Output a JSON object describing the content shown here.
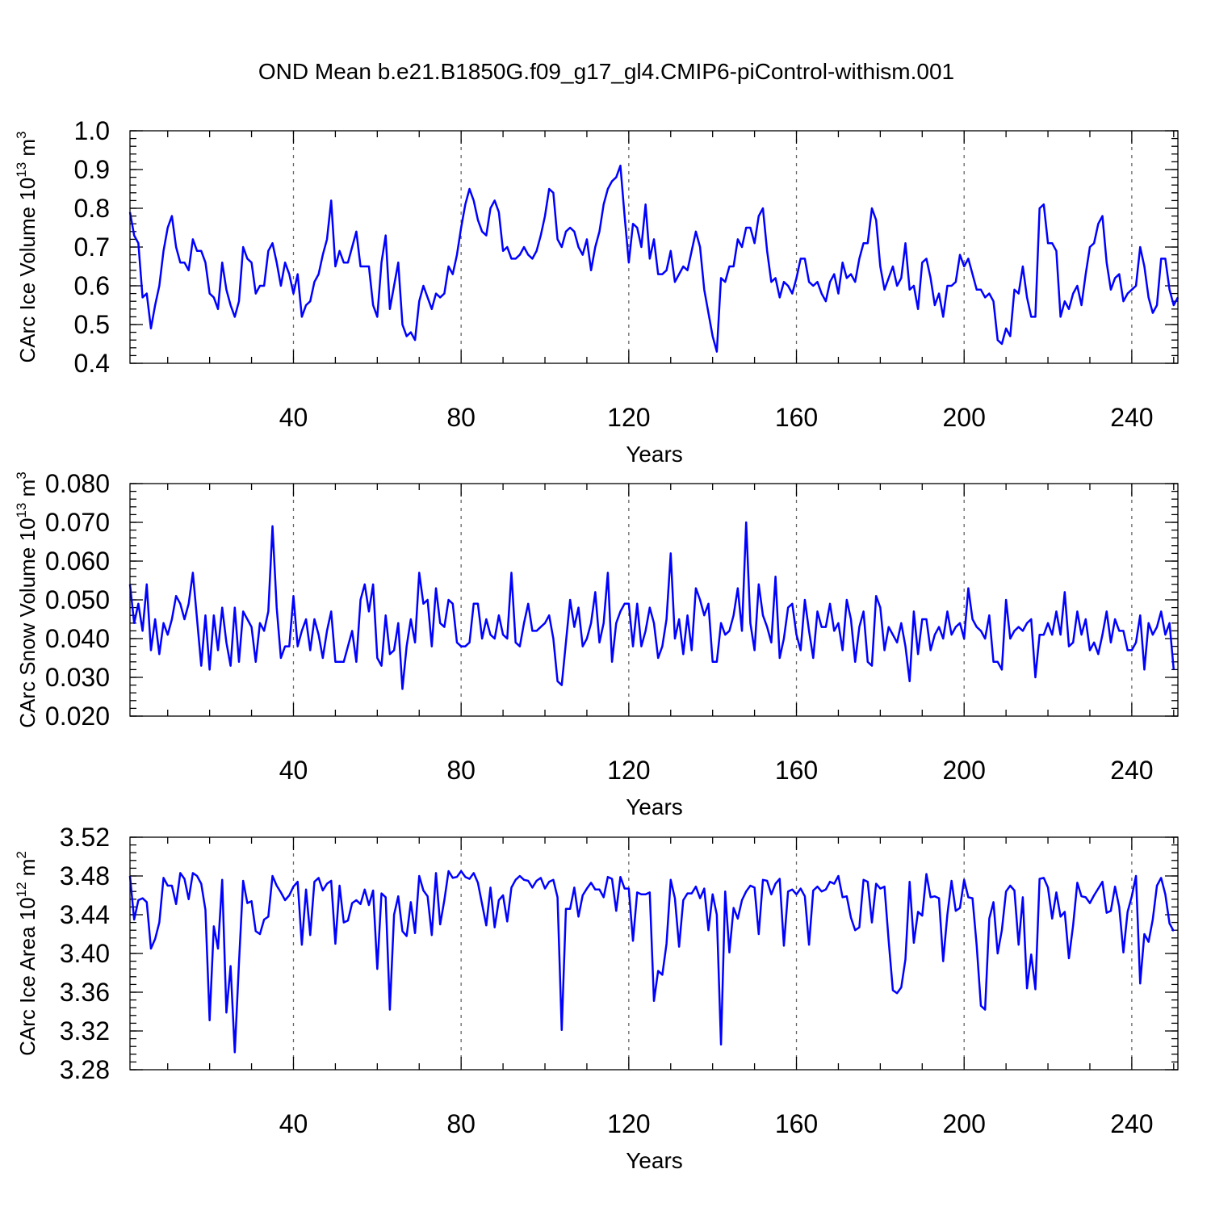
{
  "title": "OND Mean b.e21.B1850G.f09_g17_gl4.CMIP6-piControl-withism.001",
  "chart_data": [
    {
      "type": "line",
      "name": "ice-volume",
      "ylabel_text": "CArc Ice Volume 10",
      "ylabel_exp": "13",
      "ylabel_unit": " m",
      "ylabel_unit_exp": "3",
      "xlabel": "Years",
      "xlim": [
        1,
        251
      ],
      "ylim": [
        0.4,
        1.0
      ],
      "xticks": [
        40,
        80,
        120,
        160,
        200,
        240
      ],
      "xtick_labels": [
        "40",
        "80",
        "120",
        "160",
        "200",
        "240"
      ],
      "yticks": [
        0.4,
        0.5,
        0.6,
        0.7,
        0.8,
        0.9,
        1.0
      ],
      "ytick_labels": [
        "0.4",
        "0.5",
        "0.6",
        "0.7",
        "0.8",
        "0.9",
        "1.0"
      ],
      "grid_x": [
        40,
        80,
        120,
        160,
        200,
        240
      ],
      "series_color": "#0000ff",
      "values": [
        0.79,
        0.73,
        0.71,
        0.57,
        0.58,
        0.49,
        0.55,
        0.6,
        0.69,
        0.75,
        0.78,
        0.7,
        0.66,
        0.66,
        0.64,
        0.72,
        0.69,
        0.69,
        0.66,
        0.58,
        0.57,
        0.54,
        0.66,
        0.59,
        0.55,
        0.52,
        0.56,
        0.7,
        0.67,
        0.66,
        0.58,
        0.6,
        0.6,
        0.69,
        0.71,
        0.66,
        0.6,
        0.66,
        0.63,
        0.58,
        0.63,
        0.52,
        0.55,
        0.56,
        0.61,
        0.63,
        0.68,
        0.72,
        0.82,
        0.65,
        0.69,
        0.66,
        0.66,
        0.7,
        0.74,
        0.65,
        0.65,
        0.65,
        0.55,
        0.52,
        0.66,
        0.73,
        0.54,
        0.6,
        0.66,
        0.5,
        0.47,
        0.48,
        0.46,
        0.56,
        0.6,
        0.57,
        0.54,
        0.58,
        0.57,
        0.58,
        0.65,
        0.63,
        0.68,
        0.75,
        0.81,
        0.85,
        0.82,
        0.77,
        0.74,
        0.73,
        0.8,
        0.82,
        0.79,
        0.69,
        0.7,
        0.67,
        0.67,
        0.68,
        0.7,
        0.68,
        0.67,
        0.69,
        0.73,
        0.78,
        0.85,
        0.84,
        0.72,
        0.7,
        0.74,
        0.75,
        0.74,
        0.7,
        0.68,
        0.72,
        0.64,
        0.7,
        0.74,
        0.81,
        0.85,
        0.87,
        0.88,
        0.91,
        0.78,
        0.66,
        0.76,
        0.75,
        0.7,
        0.81,
        0.67,
        0.72,
        0.63,
        0.63,
        0.64,
        0.69,
        0.61,
        0.63,
        0.65,
        0.64,
        0.69,
        0.74,
        0.7,
        0.59,
        0.53,
        0.47,
        0.43,
        0.62,
        0.61,
        0.65,
        0.65,
        0.72,
        0.7,
        0.75,
        0.75,
        0.71,
        0.78,
        0.8,
        0.69,
        0.61,
        0.62,
        0.57,
        0.61,
        0.6,
        0.58,
        0.62,
        0.67,
        0.67,
        0.61,
        0.6,
        0.61,
        0.58,
        0.56,
        0.61,
        0.63,
        0.58,
        0.66,
        0.62,
        0.63,
        0.61,
        0.67,
        0.71,
        0.71,
        0.8,
        0.77,
        0.65,
        0.59,
        0.62,
        0.65,
        0.6,
        0.62,
        0.71,
        0.59,
        0.6,
        0.54,
        0.66,
        0.67,
        0.62,
        0.55,
        0.58,
        0.52,
        0.6,
        0.6,
        0.61,
        0.68,
        0.65,
        0.67,
        0.63,
        0.59,
        0.59,
        0.57,
        0.58,
        0.56,
        0.46,
        0.45,
        0.49,
        0.47,
        0.59,
        0.58,
        0.65,
        0.57,
        0.52,
        0.52,
        0.8,
        0.81,
        0.71,
        0.71,
        0.69,
        0.52,
        0.56,
        0.54,
        0.58,
        0.6,
        0.55,
        0.63,
        0.7,
        0.71,
        0.76,
        0.78,
        0.66,
        0.59,
        0.62,
        0.63,
        0.56,
        0.58,
        0.59,
        0.6,
        0.7,
        0.65,
        0.57,
        0.53,
        0.55,
        0.67,
        0.67,
        0.59,
        0.55,
        0.57
      ]
    },
    {
      "type": "line",
      "name": "snow-volume",
      "ylabel_text": "CArc Snow Volume 10",
      "ylabel_exp": "13",
      "ylabel_unit": " m",
      "ylabel_unit_exp": "3",
      "xlabel": "Years",
      "xlim": [
        1,
        251
      ],
      "ylim": [
        0.02,
        0.08
      ],
      "xticks": [
        40,
        80,
        120,
        160,
        200,
        240
      ],
      "xtick_labels": [
        "40",
        "80",
        "120",
        "160",
        "200",
        "240"
      ],
      "yticks": [
        0.02,
        0.03,
        0.04,
        0.05,
        0.06,
        0.07,
        0.08
      ],
      "ytick_labels": [
        "0.020",
        "0.030",
        "0.040",
        "0.050",
        "0.060",
        "0.070",
        "0.080"
      ],
      "grid_x": [
        40,
        80,
        120,
        160,
        200,
        240
      ],
      "series_color": "#0000ff",
      "values": [
        0.054,
        0.044,
        0.049,
        0.042,
        0.054,
        0.037,
        0.045,
        0.036,
        0.044,
        0.041,
        0.045,
        0.051,
        0.049,
        0.045,
        0.049,
        0.057,
        0.045,
        0.033,
        0.046,
        0.032,
        0.046,
        0.037,
        0.048,
        0.039,
        0.033,
        0.048,
        0.034,
        0.047,
        0.045,
        0.043,
        0.034,
        0.044,
        0.042,
        0.047,
        0.069,
        0.048,
        0.035,
        0.038,
        0.038,
        0.051,
        0.038,
        0.042,
        0.045,
        0.037,
        0.045,
        0.041,
        0.035,
        0.042,
        0.047,
        0.034,
        0.034,
        0.034,
        0.038,
        0.042,
        0.034,
        0.05,
        0.054,
        0.047,
        0.054,
        0.035,
        0.033,
        0.046,
        0.036,
        0.037,
        0.044,
        0.027,
        0.038,
        0.045,
        0.039,
        0.057,
        0.049,
        0.05,
        0.038,
        0.053,
        0.044,
        0.043,
        0.05,
        0.049,
        0.039,
        0.038,
        0.038,
        0.039,
        0.049,
        0.049,
        0.04,
        0.045,
        0.041,
        0.04,
        0.046,
        0.041,
        0.04,
        0.057,
        0.039,
        0.038,
        0.044,
        0.049,
        0.042,
        0.042,
        0.043,
        0.044,
        0.046,
        0.04,
        0.029,
        0.028,
        0.039,
        0.05,
        0.043,
        0.048,
        0.038,
        0.04,
        0.044,
        0.052,
        0.039,
        0.044,
        0.057,
        0.034,
        0.044,
        0.047,
        0.049,
        0.049,
        0.038,
        0.049,
        0.038,
        0.042,
        0.048,
        0.044,
        0.035,
        0.038,
        0.045,
        0.062,
        0.04,
        0.045,
        0.036,
        0.046,
        0.037,
        0.053,
        0.05,
        0.046,
        0.049,
        0.034,
        0.034,
        0.044,
        0.041,
        0.042,
        0.046,
        0.053,
        0.042,
        0.07,
        0.044,
        0.037,
        0.054,
        0.046,
        0.043,
        0.039,
        0.056,
        0.035,
        0.04,
        0.048,
        0.049,
        0.041,
        0.037,
        0.05,
        0.042,
        0.035,
        0.047,
        0.043,
        0.043,
        0.049,
        0.042,
        0.044,
        0.037,
        0.05,
        0.045,
        0.034,
        0.043,
        0.047,
        0.034,
        0.033,
        0.051,
        0.048,
        0.037,
        0.043,
        0.041,
        0.039,
        0.044,
        0.038,
        0.029,
        0.047,
        0.036,
        0.045,
        0.045,
        0.037,
        0.041,
        0.043,
        0.04,
        0.047,
        0.041,
        0.043,
        0.044,
        0.04,
        0.053,
        0.045,
        0.043,
        0.042,
        0.04,
        0.046,
        0.034,
        0.034,
        0.032,
        0.05,
        0.04,
        0.042,
        0.043,
        0.042,
        0.044,
        0.045,
        0.03,
        0.041,
        0.041,
        0.044,
        0.041,
        0.047,
        0.041,
        0.052,
        0.038,
        0.039,
        0.047,
        0.041,
        0.045,
        0.037,
        0.039,
        0.036,
        0.041,
        0.047,
        0.039,
        0.045,
        0.042,
        0.042,
        0.037,
        0.037,
        0.039,
        0.046,
        0.032,
        0.044,
        0.041,
        0.043,
        0.047,
        0.041,
        0.044,
        0.032
      ]
    },
    {
      "type": "line",
      "name": "ice-area",
      "ylabel_text": "CArc Ice Area 10",
      "ylabel_exp": "12",
      "ylabel_unit": " m",
      "ylabel_unit_exp": "2",
      "xlabel": "Years",
      "xlim": [
        1,
        251
      ],
      "ylim": [
        3.28,
        3.52
      ],
      "xticks": [
        40,
        80,
        120,
        160,
        200,
        240
      ],
      "xtick_labels": [
        "40",
        "80",
        "120",
        "160",
        "200",
        "240"
      ],
      "yticks": [
        3.28,
        3.32,
        3.36,
        3.4,
        3.44,
        3.48,
        3.52
      ],
      "ytick_labels": [
        "3.28",
        "3.32",
        "3.36",
        "3.40",
        "3.44",
        "3.48",
        "3.52"
      ],
      "grid_x": [
        40,
        80,
        120,
        160,
        200,
        240
      ],
      "series_color": "#0000ff",
      "values": [
        3.48,
        3.435,
        3.455,
        3.457,
        3.453,
        3.405,
        3.415,
        3.432,
        3.478,
        3.47,
        3.47,
        3.451,
        3.483,
        3.477,
        3.456,
        3.483,
        3.48,
        3.472,
        3.445,
        3.331,
        3.428,
        3.405,
        3.476,
        3.339,
        3.387,
        3.298,
        3.39,
        3.475,
        3.452,
        3.454,
        3.423,
        3.42,
        3.435,
        3.438,
        3.48,
        3.47,
        3.463,
        3.455,
        3.46,
        3.469,
        3.474,
        3.409,
        3.466,
        3.419,
        3.474,
        3.478,
        3.465,
        3.472,
        3.475,
        3.41,
        3.47,
        3.432,
        3.434,
        3.452,
        3.455,
        3.451,
        3.466,
        3.45,
        3.465,
        3.384,
        3.462,
        3.458,
        3.342,
        3.44,
        3.459,
        3.423,
        3.418,
        3.453,
        3.421,
        3.48,
        3.465,
        3.459,
        3.419,
        3.483,
        3.43,
        3.455,
        3.485,
        3.478,
        3.479,
        3.485,
        3.479,
        3.477,
        3.483,
        3.473,
        3.451,
        3.429,
        3.468,
        3.427,
        3.455,
        3.46,
        3.433,
        3.468,
        3.476,
        3.48,
        3.476,
        3.475,
        3.468,
        3.475,
        3.478,
        3.467,
        3.474,
        3.476,
        3.458,
        3.321,
        3.446,
        3.446,
        3.468,
        3.438,
        3.46,
        3.467,
        3.473,
        3.466,
        3.466,
        3.458,
        3.479,
        3.477,
        3.444,
        3.479,
        3.467,
        3.467,
        3.413,
        3.463,
        3.461,
        3.461,
        3.463,
        3.351,
        3.382,
        3.378,
        3.41,
        3.476,
        3.457,
        3.407,
        3.455,
        3.462,
        3.462,
        3.469,
        3.457,
        3.467,
        3.424,
        3.461,
        3.44,
        3.306,
        3.464,
        3.401,
        3.447,
        3.436,
        3.455,
        3.464,
        3.47,
        3.468,
        3.42,
        3.476,
        3.475,
        3.461,
        3.472,
        3.477,
        3.408,
        3.464,
        3.466,
        3.461,
        3.467,
        3.459,
        3.409,
        3.465,
        3.469,
        3.464,
        3.466,
        3.474,
        3.472,
        3.48,
        3.458,
        3.459,
        3.437,
        3.424,
        3.427,
        3.476,
        3.474,
        3.432,
        3.472,
        3.467,
        3.469,
        3.413,
        3.362,
        3.359,
        3.365,
        3.394,
        3.474,
        3.411,
        3.443,
        3.439,
        3.482,
        3.458,
        3.459,
        3.457,
        3.392,
        3.44,
        3.475,
        3.444,
        3.447,
        3.476,
        3.458,
        3.457,
        3.408,
        3.346,
        3.342,
        3.436,
        3.453,
        3.4,
        3.424,
        3.464,
        3.47,
        3.465,
        3.409,
        3.458,
        3.364,
        3.399,
        3.363,
        3.477,
        3.478,
        3.468,
        3.436,
        3.463,
        3.438,
        3.443,
        3.395,
        3.429,
        3.473,
        3.459,
        3.458,
        3.452,
        3.46,
        3.467,
        3.474,
        3.442,
        3.444,
        3.469,
        3.448,
        3.401,
        3.443,
        3.459,
        3.48,
        3.369,
        3.42,
        3.412,
        3.435,
        3.47,
        3.478,
        3.461,
        3.431,
        3.423
      ]
    }
  ]
}
